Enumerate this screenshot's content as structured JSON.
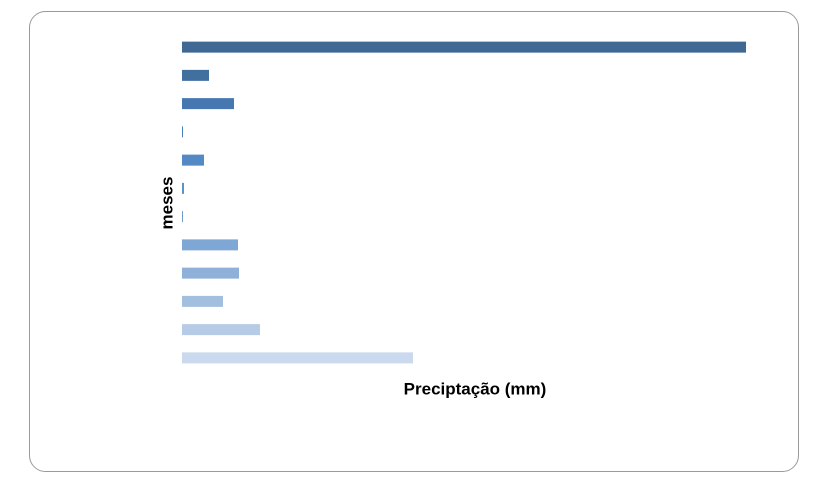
{
  "chart_data": {
    "type": "hbar",
    "x_label": "Preciptação (mm)",
    "y_label": "meses",
    "categories": [
      null,
      null,
      null,
      null,
      null,
      null,
      null,
      null,
      null,
      null,
      null,
      null
    ],
    "values": [
      564,
      27,
      52,
      1,
      22,
      2,
      1,
      56,
      57,
      41,
      78,
      231
    ],
    "colors": [
      "#3f6895",
      "#41709f",
      "#4677b0",
      "#4a7fbe",
      "#5389c5",
      "#5f91c9",
      "#6d9bcf",
      "#7ea7d5",
      "#8fb1d9",
      "#a3bfe0",
      "#b6cce6",
      "#cad9ed"
    ],
    "xlim": [
      0,
      564
    ]
  }
}
